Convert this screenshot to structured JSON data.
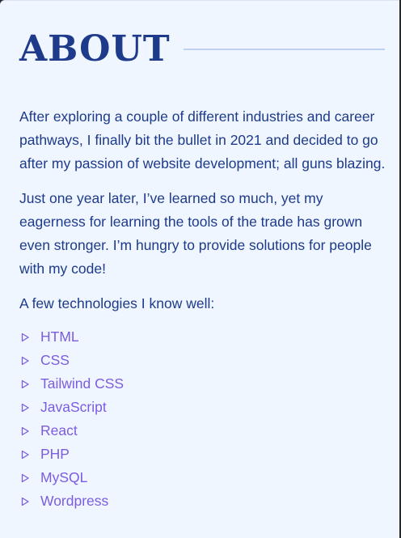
{
  "section": {
    "heading": "ABOUT"
  },
  "about": {
    "paragraphs": [
      "After exploring a couple of different industries and career pathways, I finally bit the bullet in 2021 and decided to go after my passion of website development; all guns blazing.",
      "Just one year later, I’ve learned so much, yet my eagerness for learning the tools of the trade has grown even stronger. I’m hungry to provide solutions for people with my code!",
      "A few technologies I know well:"
    ],
    "technologies": [
      "HTML",
      "CSS",
      "Tailwind CSS",
      "JavaScript",
      "React",
      "PHP",
      "MySQL",
      "Wordpress"
    ]
  },
  "colors": {
    "background": "#eff6ff",
    "heading": "#1e3a8a",
    "text": "#1e3a8a",
    "accent": "#7c5ce0",
    "rule": "#bfd0f5"
  },
  "icons": {
    "list_marker": "triangle-right-outline-icon"
  }
}
